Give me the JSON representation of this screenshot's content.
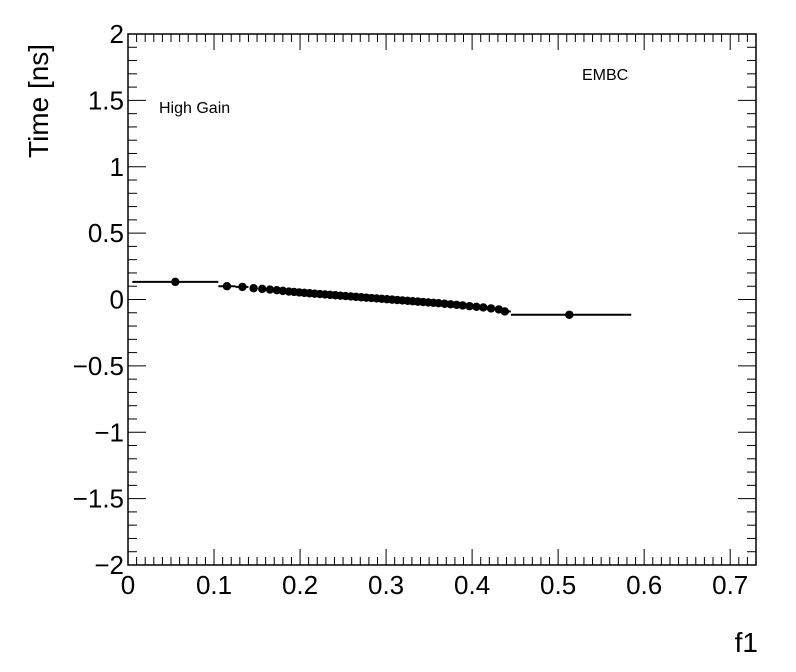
{
  "chart_data": {
    "type": "scatter",
    "title": "",
    "xlabel": "f1",
    "ylabel": "Time [ns]",
    "xlim": [
      0,
      0.73
    ],
    "ylim": [
      -2,
      2
    ],
    "x_ticks": [
      0,
      0.1,
      0.2,
      0.3,
      0.4,
      0.5,
      0.6,
      0.7
    ],
    "x_tick_labels": [
      "0",
      "0.1",
      "0.2",
      "0.3",
      "0.4",
      "0.5",
      "0.6",
      "0.7"
    ],
    "y_ticks": [
      -2,
      -1.5,
      -1,
      -0.5,
      0,
      0.5,
      1,
      1.5,
      2
    ],
    "y_tick_labels": [
      "−2",
      "−1.5",
      "−1",
      "−0.5",
      "0",
      "0.5",
      "1",
      "1.5",
      "2"
    ],
    "annotations": [
      "High Gain",
      "EMBC"
    ],
    "grid": false,
    "marker_color": "#000000",
    "series": [
      {
        "points": [
          {
            "x": 0.055,
            "y": 0.133,
            "xerr": [
              0.005,
              0.105
            ]
          },
          {
            "x": 0.115,
            "y": 0.1,
            "xerr": [
              0.105,
              0.125
            ]
          },
          {
            "x": 0.133,
            "y": 0.095,
            "xerr": [
              0.125,
              0.14
            ]
          },
          {
            "x": 0.146,
            "y": 0.085
          },
          {
            "x": 0.156,
            "y": 0.08
          },
          {
            "x": 0.165,
            "y": 0.075
          },
          {
            "x": 0.173,
            "y": 0.07
          },
          {
            "x": 0.18,
            "y": 0.065
          },
          {
            "x": 0.187,
            "y": 0.06
          },
          {
            "x": 0.193,
            "y": 0.057
          },
          {
            "x": 0.199,
            "y": 0.053
          },
          {
            "x": 0.205,
            "y": 0.05
          },
          {
            "x": 0.211,
            "y": 0.047
          },
          {
            "x": 0.217,
            "y": 0.044
          },
          {
            "x": 0.223,
            "y": 0.041
          },
          {
            "x": 0.229,
            "y": 0.038
          },
          {
            "x": 0.235,
            "y": 0.035
          },
          {
            "x": 0.241,
            "y": 0.032
          },
          {
            "x": 0.247,
            "y": 0.029
          },
          {
            "x": 0.253,
            "y": 0.026
          },
          {
            "x": 0.259,
            "y": 0.023
          },
          {
            "x": 0.265,
            "y": 0.02
          },
          {
            "x": 0.271,
            "y": 0.017
          },
          {
            "x": 0.277,
            "y": 0.014
          },
          {
            "x": 0.283,
            "y": 0.011
          },
          {
            "x": 0.289,
            "y": 0.008
          },
          {
            "x": 0.295,
            "y": 0.005
          },
          {
            "x": 0.301,
            "y": 0.002
          },
          {
            "x": 0.307,
            "y": -0.001
          },
          {
            "x": 0.313,
            "y": -0.004
          },
          {
            "x": 0.319,
            "y": -0.007
          },
          {
            "x": 0.325,
            "y": -0.01
          },
          {
            "x": 0.331,
            "y": -0.013
          },
          {
            "x": 0.337,
            "y": -0.016
          },
          {
            "x": 0.343,
            "y": -0.019
          },
          {
            "x": 0.349,
            "y": -0.022
          },
          {
            "x": 0.355,
            "y": -0.025
          },
          {
            "x": 0.361,
            "y": -0.028
          },
          {
            "x": 0.368,
            "y": -0.032
          },
          {
            "x": 0.375,
            "y": -0.036
          },
          {
            "x": 0.382,
            "y": -0.04
          },
          {
            "x": 0.389,
            "y": -0.045
          },
          {
            "x": 0.397,
            "y": -0.05
          },
          {
            "x": 0.405,
            "y": -0.055
          },
          {
            "x": 0.413,
            "y": -0.06
          },
          {
            "x": 0.422,
            "y": -0.067
          },
          {
            "x": 0.431,
            "y": -0.075
          },
          {
            "x": 0.438,
            "y": -0.09,
            "xerr": [
              0.435,
              0.445
            ]
          },
          {
            "x": 0.513,
            "y": -0.115,
            "xerr": [
              0.445,
              0.585
            ]
          }
        ]
      }
    ]
  }
}
